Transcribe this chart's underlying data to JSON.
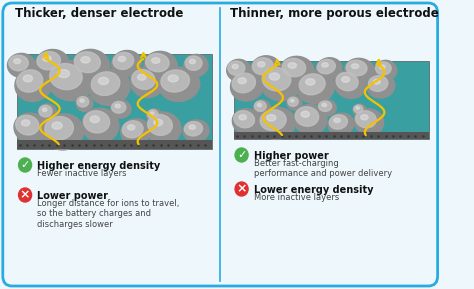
{
  "bg_color": "#eef8fc",
  "border_color": "#29abe2",
  "divider_color": "#29abe2",
  "left_title": "Thicker, denser electrode",
  "right_title": "Thinner, more porous electrode",
  "left_pros_bold": "Higher energy density",
  "left_pros_normal": "Fewer inactive layers",
  "left_cons_bold": "Lower power",
  "left_cons_normal": "Longer distance for ions to travel,\nso the battery charges and\ndischarges slower",
  "right_pros_bold": "Higher power",
  "right_pros_normal": "Better fast-charging\nperformance and power delivery",
  "right_cons_bold": "Lower energy density",
  "right_cons_normal": "More inactive layers",
  "green_color": "#4caf50",
  "red_color": "#e03030",
  "text_color": "#111111",
  "subtitle_color": "#444444",
  "check_mark": "✓",
  "x_mark": "×",
  "rock_color_base": "#909090",
  "rock_color_light": "#c0c0c0",
  "rock_color_dark": "#606060",
  "teal_bg": "#3a9fa0",
  "ground_color": "#555555",
  "ground_texture": "#444444",
  "arrow_color": "#f5c200"
}
